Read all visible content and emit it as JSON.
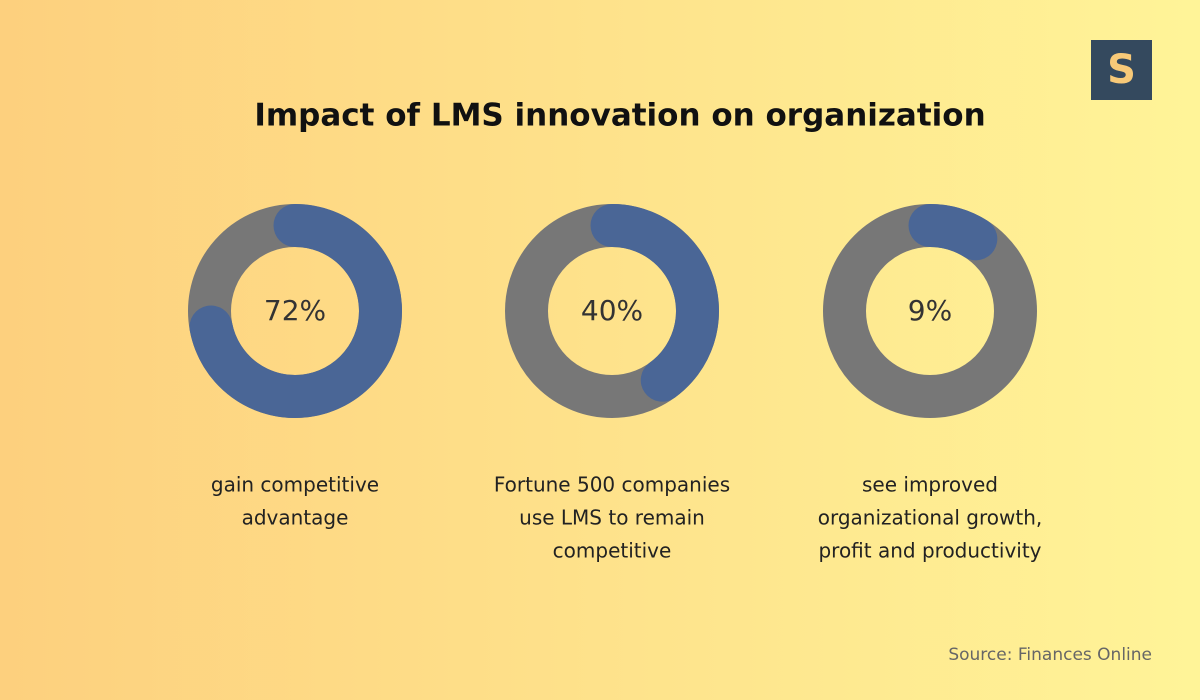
{
  "title": "Impact of LMS innovation on organization",
  "logo": "S",
  "source": "Source: Finances Online",
  "chart_data": [
    {
      "type": "donut",
      "values": [
        72
      ],
      "value_labels": [
        "72%"
      ],
      "max": 100,
      "color": "#4a6696",
      "track_color": "#777777",
      "caption": [
        "gain competitive",
        "advantage"
      ]
    },
    {
      "type": "donut",
      "values": [
        40
      ],
      "value_labels": [
        "40%"
      ],
      "max": 100,
      "color": "#4a6696",
      "track_color": "#777777",
      "caption": [
        "Fortune 500 companies",
        "use LMS to remain",
        "competitive"
      ]
    },
    {
      "type": "donut",
      "values": [
        9
      ],
      "value_labels": [
        "9%"
      ],
      "max": 100,
      "color": "#4a6696",
      "track_color": "#777777",
      "caption": [
        "see improved",
        "organizational growth,",
        "profit and productivity"
      ]
    }
  ]
}
